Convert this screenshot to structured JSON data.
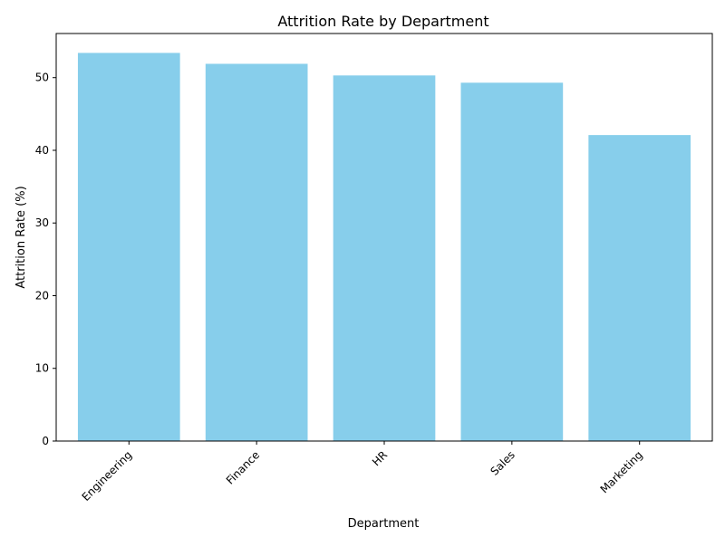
{
  "chart_data": {
    "type": "bar",
    "title": "Attrition Rate by Department",
    "xlabel": "Department",
    "ylabel": "Attrition Rate (%)",
    "categories": [
      "Engineering",
      "Finance",
      "HR",
      "Sales",
      "Marketing"
    ],
    "values": [
      53.4,
      51.9,
      50.3,
      49.3,
      42.1
    ],
    "ylim": [
      0,
      56.07
    ],
    "yticks": [
      0,
      10,
      20,
      30,
      40,
      50
    ],
    "xtick_rotation_deg": 45,
    "grid": false,
    "legend": "none",
    "bar_color": "#87ceeb"
  }
}
